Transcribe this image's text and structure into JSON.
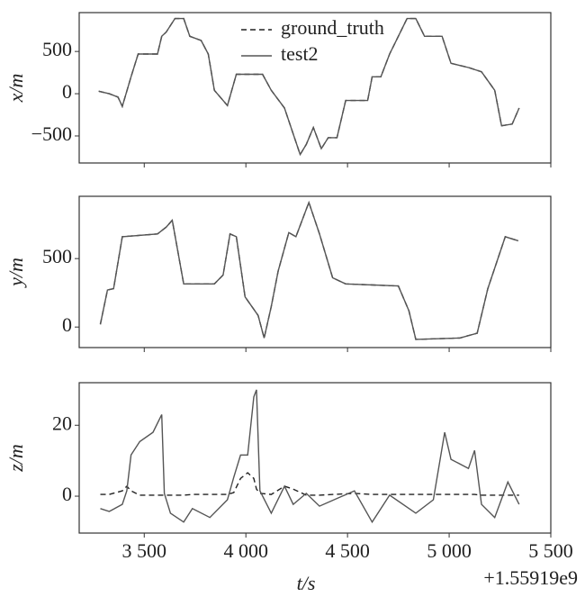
{
  "chart_data": [
    {
      "type": "line",
      "ylabel": "x/m",
      "legend": "upper center",
      "x": [
        3276,
        3328,
        3371,
        3392,
        3435,
        3470,
        3565,
        3586,
        3608,
        3651,
        3694,
        3724,
        3780,
        3815,
        3845,
        3909,
        3953,
        4082,
        4125,
        4190,
        4267,
        4297,
        4332,
        4371,
        4405,
        4448,
        4491,
        4599,
        4621,
        4664,
        4707,
        4750,
        4793,
        4836,
        4879,
        4965,
        5009,
        5095,
        5159,
        5224,
        5258,
        5310,
        5344
      ],
      "series": [
        {
          "name": "ground_truth",
          "color": "#222222",
          "linestyle": "dashed",
          "values": [
            30,
            0,
            -40,
            -150,
            200,
            470,
            470,
            680,
            730,
            890,
            890,
            680,
            630,
            470,
            40,
            -140,
            230,
            230,
            40,
            -170,
            -720,
            -600,
            -400,
            -650,
            -520,
            -520,
            -80,
            -80,
            200,
            200,
            470,
            680,
            890,
            890,
            680,
            680,
            360,
            310,
            260,
            40,
            -380,
            -360,
            -170
          ]
        },
        {
          "name": "test2",
          "color": "#555555",
          "linestyle": "solid",
          "values": [
            30,
            0,
            -40,
            -150,
            200,
            470,
            470,
            680,
            730,
            890,
            890,
            680,
            630,
            470,
            40,
            -140,
            230,
            230,
            40,
            -170,
            -720,
            -600,
            -400,
            -650,
            -520,
            -520,
            -80,
            -80,
            200,
            200,
            470,
            680,
            890,
            890,
            680,
            680,
            360,
            310,
            260,
            40,
            -380,
            -360,
            -170
          ]
        }
      ],
      "xlim": [
        3180,
        5500
      ],
      "xticks": [
        3500,
        4000,
        4500,
        5000,
        5500
      ],
      "ylim": [
        -820,
        960
      ],
      "yticks": [
        {
          "value": -500,
          "label": "−500"
        },
        0,
        500
      ]
    },
    {
      "type": "line",
      "ylabel": "y/m",
      "x": [
        3284,
        3319,
        3349,
        3392,
        3565,
        3608,
        3638,
        3694,
        3845,
        3888,
        3922,
        3953,
        3996,
        4060,
        4090,
        4125,
        4159,
        4211,
        4246,
        4310,
        4362,
        4427,
        4491,
        4750,
        4802,
        4836,
        5052,
        5138,
        5190,
        5276,
        5340
      ],
      "series": [
        {
          "name": "ground_truth",
          "color": "#222222",
          "linestyle": "dashed",
          "values": [
            20,
            270,
            280,
            660,
            680,
            730,
            780,
            315,
            315,
            380,
            680,
            660,
            220,
            85,
            -80,
            150,
            410,
            690,
            660,
            910,
            680,
            360,
            315,
            300,
            120,
            -90,
            -80,
            -45,
            280,
            660,
            630
          ]
        },
        {
          "name": "test2",
          "color": "#555555",
          "linestyle": "solid",
          "values": [
            20,
            270,
            280,
            660,
            680,
            730,
            780,
            315,
            315,
            380,
            680,
            660,
            220,
            85,
            -80,
            150,
            410,
            690,
            660,
            910,
            680,
            360,
            315,
            300,
            120,
            -90,
            -80,
            -45,
            280,
            660,
            630
          ]
        }
      ],
      "xlim": [
        3180,
        5500
      ],
      "xticks": [
        3500,
        4000,
        4500,
        5000,
        5500
      ],
      "ylim": [
        -150,
        955
      ],
      "yticks": [
        0,
        500
      ]
    },
    {
      "type": "line",
      "ylabel": "z/m",
      "xlabel": "t/s",
      "x_offset_label": "+1.55919e9",
      "x": [
        3284,
        3328,
        3392,
        3414,
        3435,
        3478,
        3543,
        3586,
        3599,
        3629,
        3694,
        3737,
        3823,
        3909,
        3940,
        3974,
        4009,
        4039,
        4052,
        4069,
        4125,
        4190,
        4233,
        4297,
        4362,
        4534,
        4621,
        4707,
        4836,
        4922,
        4978,
        5009,
        5095,
        5125,
        5159,
        5224,
        5289,
        5344
      ],
      "series": [
        {
          "name": "ground_truth",
          "color": "#222222",
          "linestyle": "dashed",
          "values": [
            0.5,
            0.5,
            1.5,
            2.8,
            1.5,
            0.3,
            0.3,
            0.3,
            0.3,
            0.3,
            0.3,
            0.5,
            0.5,
            0.5,
            1,
            5,
            6.6,
            5,
            2,
            0.8,
            0.5,
            2.8,
            2,
            0.3,
            0.3,
            0.8,
            0.5,
            0.5,
            0.5,
            0.5,
            0.5,
            0.5,
            0.5,
            0.5,
            0.3,
            0.3,
            0.3,
            0.3
          ]
        },
        {
          "name": "test2",
          "color": "#555555",
          "linestyle": "solid",
          "values": [
            -3.5,
            -4.3,
            -2.3,
            1.5,
            11.6,
            15.4,
            18,
            23,
            0.8,
            -4.8,
            -7.3,
            -3.5,
            -6,
            -1,
            5.3,
            11.6,
            11.6,
            28,
            30,
            1.5,
            -4.8,
            2.8,
            -2.3,
            0.8,
            -2.8,
            1.5,
            -7.3,
            0.3,
            -4.8,
            -1,
            18,
            10.4,
            7.8,
            12.9,
            -2.3,
            -6,
            4,
            -2.3
          ]
        }
      ],
      "xlim": [
        3180,
        5500
      ],
      "xticks": [
        {
          "value": 3500,
          "label": "3 500"
        },
        {
          "value": 4000,
          "label": "4 000"
        },
        {
          "value": 4500,
          "label": "4 500"
        },
        {
          "value": 5000,
          "label": "5 000"
        },
        {
          "value": 5500,
          "label": "5 500"
        }
      ],
      "ylim": [
        -10.4,
        32
      ],
      "yticks": [
        0,
        20
      ]
    }
  ]
}
